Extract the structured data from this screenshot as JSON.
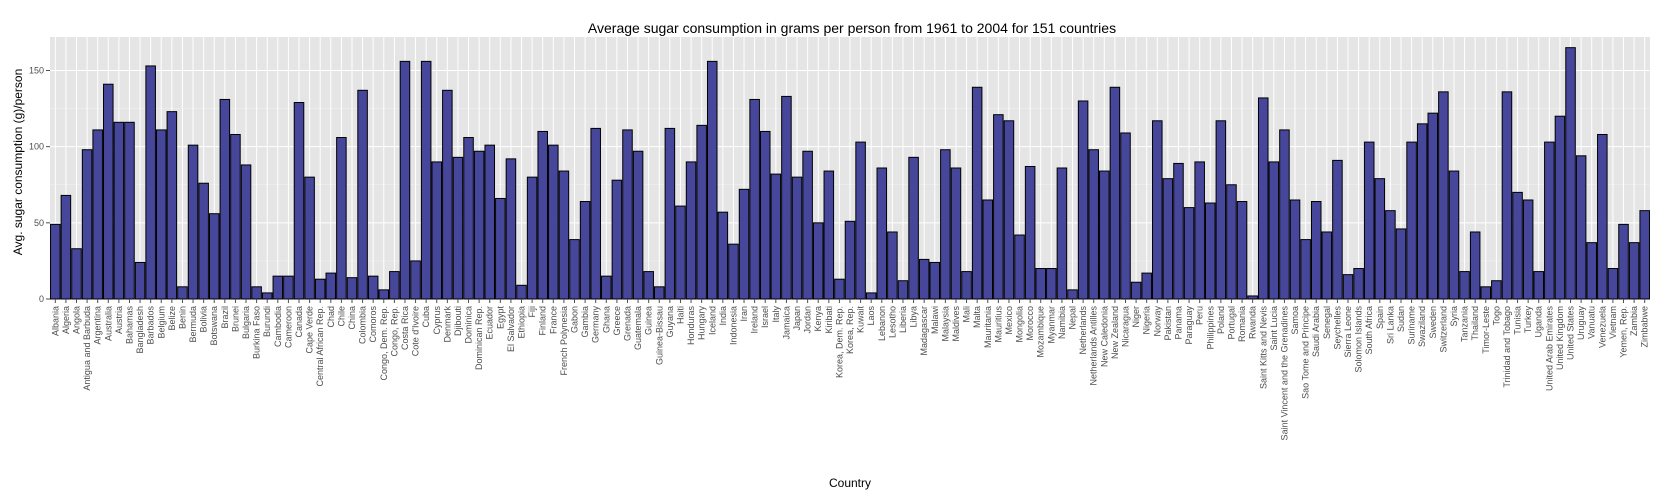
{
  "chart_data": {
    "type": "bar",
    "title": "Average sugar consumption in grams per person from 1961 to 2004 for 151 countries",
    "xlabel": "Country",
    "ylabel": "Avg. sugar consumption (g)/person",
    "ylim": [
      0,
      172
    ],
    "yticks": [
      0,
      50,
      100,
      150
    ],
    "grid": true,
    "bar_color": "#46469a",
    "panel_color": "#e5e5e5",
    "categories": [
      "Albania",
      "Algeria",
      "Angola",
      "Antigua and Barbuda",
      "Argentina",
      "Australia",
      "Austria",
      "Bahamas",
      "Bangladesh",
      "Barbados",
      "Belgium",
      "Belize",
      "Benin",
      "Bermuda",
      "Bolivia",
      "Botswana",
      "Brazil",
      "Brunei",
      "Bulgaria",
      "Burkina Faso",
      "Burundi",
      "Cambodia",
      "Cameroon",
      "Canada",
      "Cape Verde",
      "Central African Rep.",
      "Chad",
      "Chile",
      "China",
      "Colombia",
      "Comoros",
      "Congo, Dem. Rep.",
      "Congo, Rep.",
      "Costa Rica",
      "Cote d'Ivoire",
      "Cuba",
      "Cyprus",
      "Denmark",
      "Djibouti",
      "Dominica",
      "Dominican Rep.",
      "Ecuador",
      "Egypt",
      "El Salvador",
      "Ethiopia",
      "Fiji",
      "Finland",
      "France",
      "French Polynesia",
      "Gabon",
      "Gambia",
      "Germany",
      "Ghana",
      "Greece",
      "Grenada",
      "Guatemala",
      "Guinea",
      "Guinea-Bissau",
      "Guyana",
      "Haiti",
      "Honduras",
      "Hungary",
      "Iceland",
      "India",
      "Indonesia",
      "Iran",
      "Ireland",
      "Israel",
      "Italy",
      "Jamaica",
      "Japan",
      "Jordan",
      "Kenya",
      "Kiribati",
      "Korea, Dem. Rep.",
      "Korea, Rep.",
      "Kuwait",
      "Laos",
      "Lebanon",
      "Lesotho",
      "Liberia",
      "Libya",
      "Madagascar",
      "Malawi",
      "Malaysia",
      "Maldives",
      "Mali",
      "Malta",
      "Mauritania",
      "Mauritius",
      "Mexico",
      "Mongolia",
      "Morocco",
      "Mozambique",
      "Myanmar",
      "Namibia",
      "Nepal",
      "Netherlands",
      "Netherlands Antilles",
      "New Caledonia",
      "New Zealand",
      "Nicaragua",
      "Niger",
      "Nigeria",
      "Norway",
      "Pakistan",
      "Panama",
      "Paraguay",
      "Peru",
      "Philippines",
      "Poland",
      "Portugal",
      "Romania",
      "Rwanda",
      "Saint Kitts and Nevis",
      "Saint Lucia",
      "Saint Vincent and the Grenadines",
      "Samoa",
      "Sao Tome and Principe",
      "Saudi Arabia",
      "Senegal",
      "Seychelles",
      "Sierra Leone",
      "Solomon Islands",
      "South Africa",
      "Spain",
      "Sri Lanka",
      "Sudan",
      "Suriname",
      "Swaziland",
      "Sweden",
      "Switzerland",
      "Syria",
      "Tanzania",
      "Thailand",
      "Timor-Leste",
      "Togo",
      "Trinidad and Tobago",
      "Tunisia",
      "Turkey",
      "Uganda",
      "United Arab Emirates",
      "United Kingdom",
      "United States",
      "Uruguay",
      "Vanuatu",
      "Venezuela",
      "Vietnam",
      "Yemen, Rep.",
      "Zambia",
      "Zimbabwe"
    ],
    "values": [
      49,
      68,
      33,
      98,
      111,
      141,
      116,
      116,
      24,
      153,
      111,
      123,
      8,
      101,
      76,
      56,
      131,
      108,
      88,
      8,
      4,
      15,
      15,
      129,
      80,
      13,
      17,
      106,
      14,
      137,
      15,
      6,
      18,
      156,
      25,
      156,
      90,
      137,
      93,
      106,
      97,
      101,
      66,
      92,
      9,
      80,
      110,
      101,
      84,
      39,
      64,
      112,
      15,
      78,
      111,
      97,
      18,
      8,
      112,
      61,
      90,
      114,
      156,
      57,
      36,
      72,
      131,
      110,
      82,
      133,
      80,
      97,
      50,
      84,
      13,
      51,
      103,
      4,
      86,
      44,
      12,
      93,
      26,
      24,
      98,
      86,
      18,
      139,
      65,
      121,
      117,
      42,
      87,
      20,
      20,
      86,
      6,
      130,
      98,
      84,
      139,
      109,
      11,
      17,
      117,
      79,
      89,
      60,
      90,
      63,
      117,
      75,
      64,
      2,
      132,
      90,
      111,
      65,
      39,
      64,
      44,
      91,
      16,
      20,
      103,
      79,
      58,
      46,
      103,
      115,
      122,
      136,
      84,
      18,
      44,
      8,
      12,
      136,
      70,
      65,
      18,
      103,
      120,
      165,
      94,
      37,
      108,
      20,
      49,
      37,
      58
    ]
  }
}
